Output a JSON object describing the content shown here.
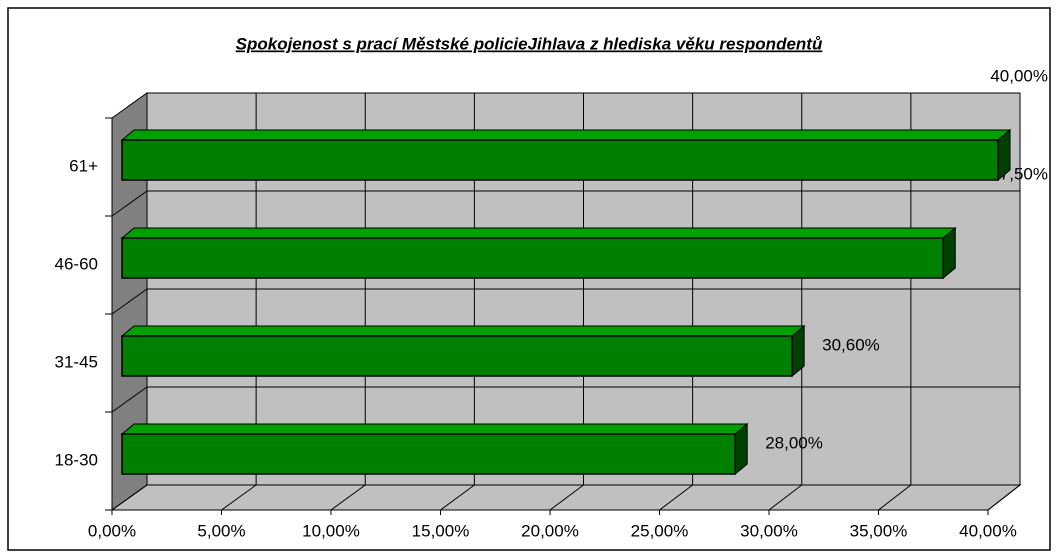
{
  "chart_data": {
    "type": "bar",
    "orientation": "horizontal",
    "title": "Spokojenost s prací Městské policieJihlava z hlediska věku respondentů",
    "categories": [
      "18-30",
      "31-45",
      "46-60",
      "61+"
    ],
    "values": [
      28,
      30.6,
      37.5,
      40
    ],
    "value_labels": [
      "28,00%",
      "30,60%",
      "37,50%",
      "40,00%"
    ],
    "color": "#008000",
    "xlim": [
      0,
      40
    ],
    "xticks": [
      {
        "value": 0,
        "label": "0,00%"
      },
      {
        "value": 5,
        "label": "5,00%"
      },
      {
        "value": 10,
        "label": "10,00%"
      },
      {
        "value": 15,
        "label": "15,00%"
      },
      {
        "value": 20,
        "label": "20,00%"
      },
      {
        "value": 25,
        "label": "25,00%"
      },
      {
        "value": 30,
        "label": "30,00%"
      },
      {
        "value": 35,
        "label": "35,00%"
      },
      {
        "value": 40,
        "label": "40,00%"
      }
    ],
    "grid": true
  }
}
